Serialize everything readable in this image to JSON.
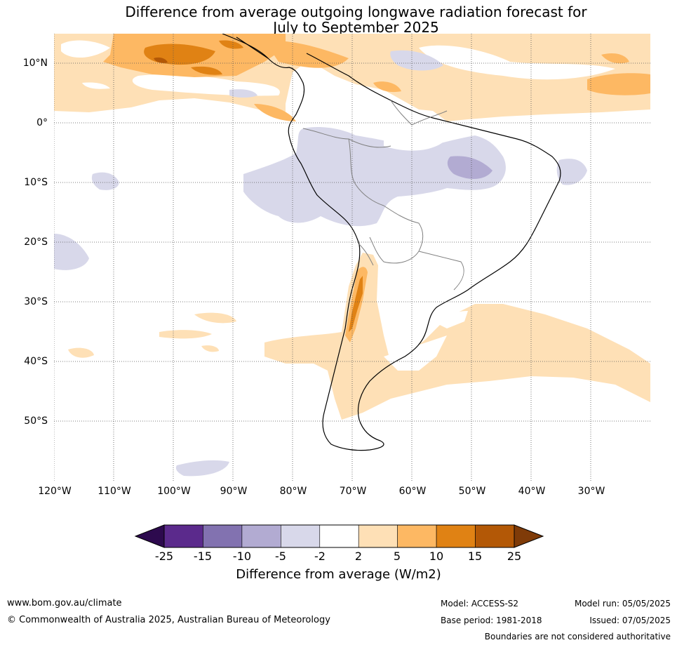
{
  "title": {
    "line1": "Difference from average outgoing longwave radiation forecast for",
    "line2": "July to September 2025"
  },
  "map": {
    "lat_labels": [
      "10°N",
      "0°",
      "10°S",
      "20°S",
      "30°S",
      "40°S",
      "50°S"
    ],
    "lon_labels": [
      "120°W",
      "110°W",
      "100°W",
      "90°W",
      "80°W",
      "70°W",
      "60°W",
      "50°W",
      "40°W",
      "30°W"
    ]
  },
  "colorbar": {
    "ticks": [
      "-25",
      "-15",
      "-10",
      "-5",
      "-2",
      "2",
      "5",
      "10",
      "15",
      "25"
    ],
    "label": "Difference from average (W/m2)",
    "colors": [
      "#2d0a4e",
      "#5b2a8c",
      "#8272b0",
      "#b2abd2",
      "#d8d8ea",
      "#ffffff",
      "#fee0b6",
      "#fdb863",
      "#e08214",
      "#b35806",
      "#7f3b08"
    ]
  },
  "footer": {
    "website": "www.bom.gov.au/climate",
    "copyright": "© Commonwealth of Australia 2025, Australian Bureau of Meteorology",
    "model": "Model: ACCESS-S2",
    "base_period": "Base period: 1981-2018",
    "model_run": "Model run: 05/05/2025",
    "issued": "Issued: 07/05/2025",
    "boundaries": "Boundaries are not considered authoritative"
  }
}
